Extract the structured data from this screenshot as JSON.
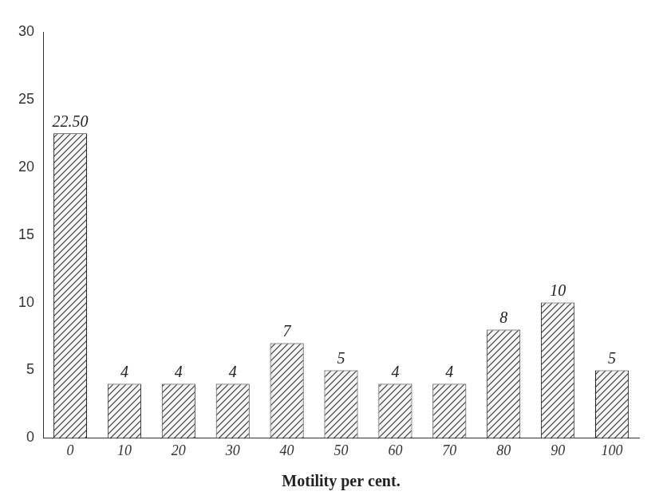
{
  "chart_data": {
    "type": "bar",
    "categories": [
      "0",
      "10",
      "20",
      "30",
      "40",
      "50",
      "60",
      "70",
      "80",
      "90",
      "100"
    ],
    "values": [
      22.5,
      4,
      4,
      4,
      7,
      5,
      4,
      4,
      8,
      10,
      5
    ],
    "value_labels": [
      "22.50",
      "4",
      "4",
      "4",
      "7",
      "5",
      "4",
      "4",
      "8",
      "10",
      "5"
    ],
    "data_labels": true,
    "color": "#3a3a3a",
    "x_label": "Motility per cent.",
    "ylim": [
      0,
      30
    ],
    "yticks": [
      0,
      5,
      10,
      15,
      20,
      25,
      30
    ],
    "grid": false
  }
}
